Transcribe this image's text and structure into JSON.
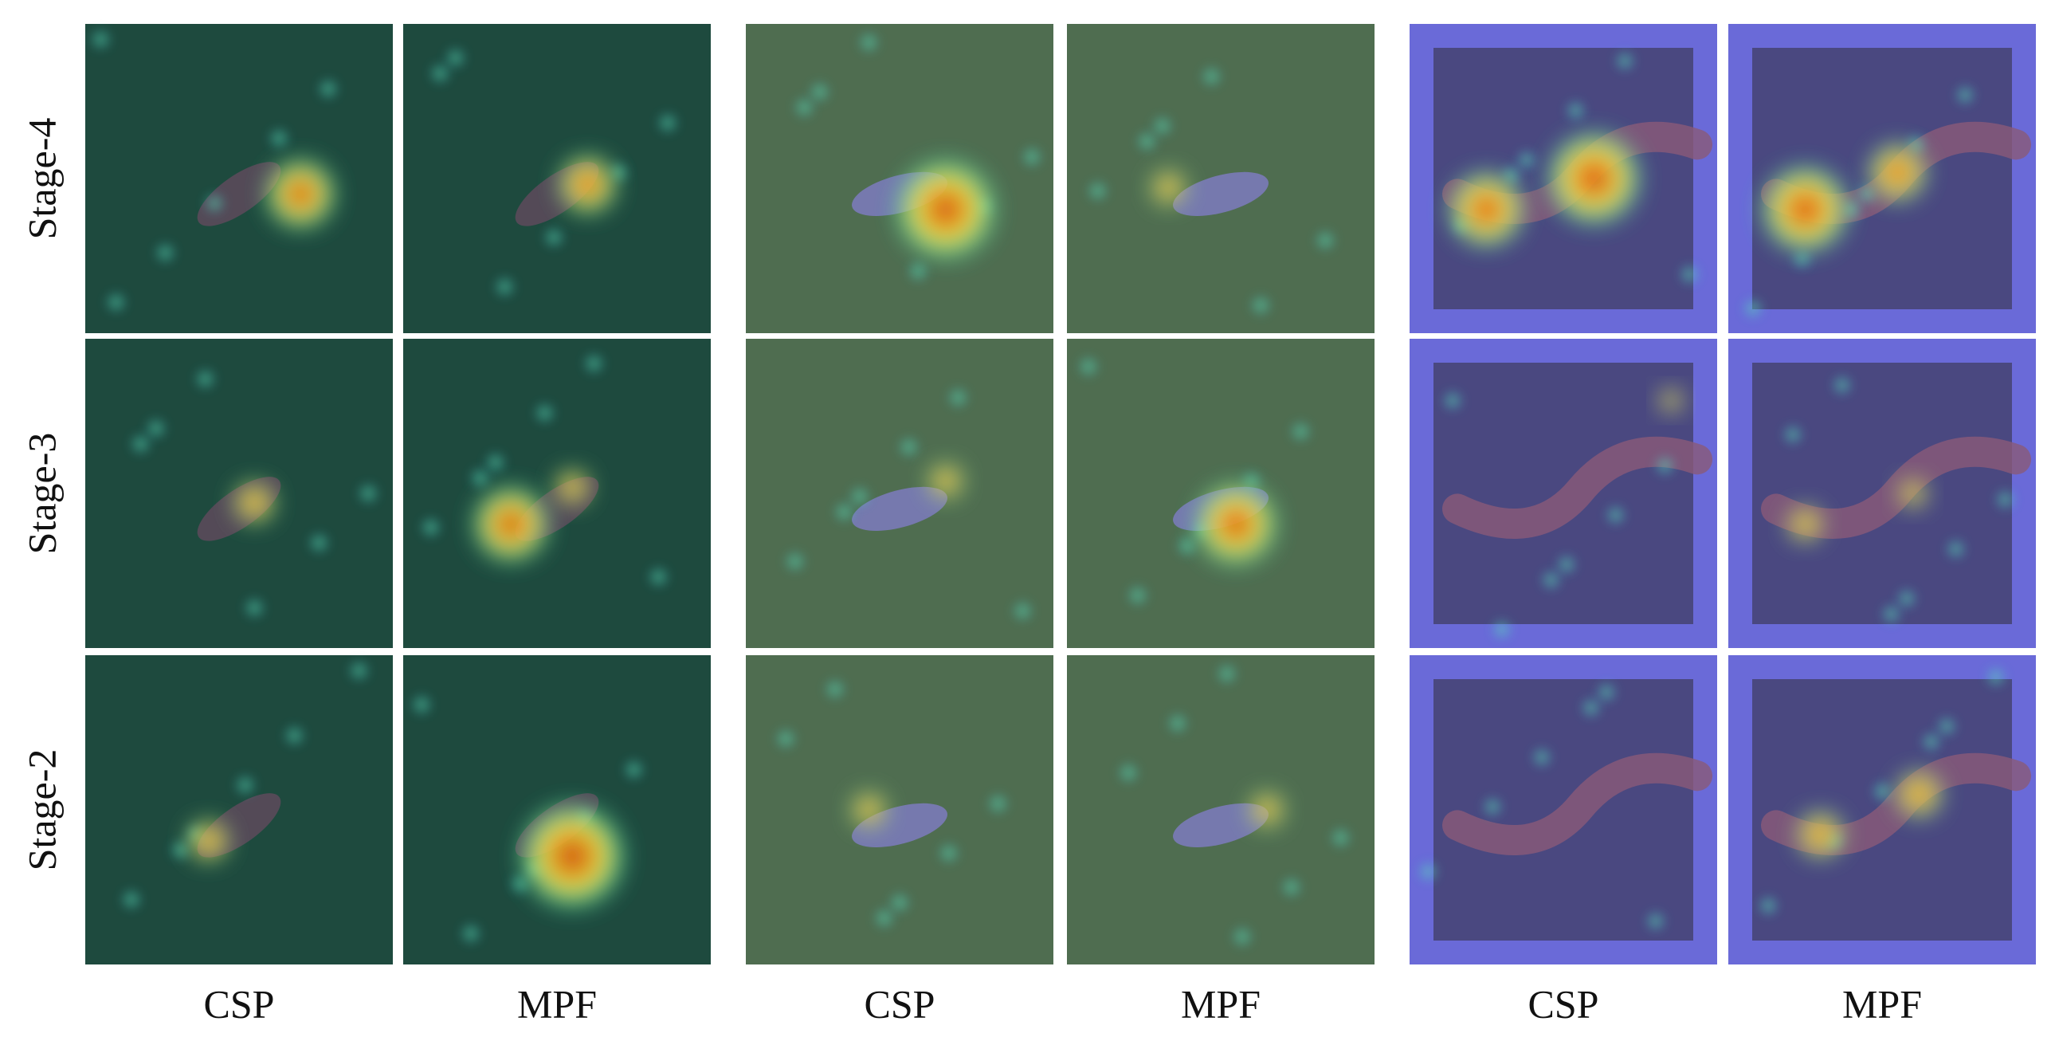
{
  "row_labels": [
    "Stage-4",
    "Stage-3",
    "Stage-2"
  ],
  "column_labels": [
    "CSP",
    "MPF",
    "CSP",
    "MPF",
    "CSP",
    "MPF"
  ]
}
